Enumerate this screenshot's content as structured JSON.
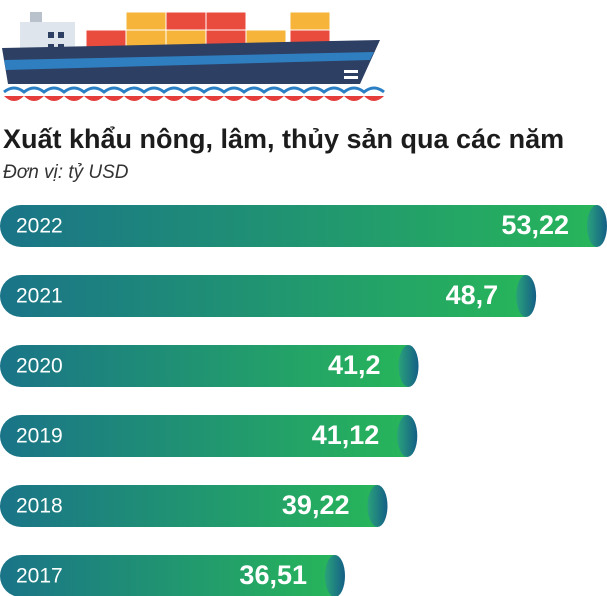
{
  "chart_data": {
    "type": "bar",
    "orientation": "horizontal",
    "title": "Xuất khẩu nông, lâm, thủy sản qua các năm",
    "subtitle": "Đơn vị: tỷ USD",
    "categories": [
      "2022",
      "2021",
      "2020",
      "2019",
      "2018",
      "2017"
    ],
    "values": [
      53.22,
      48.7,
      41.2,
      41.12,
      39.22,
      36.51
    ],
    "value_labels": [
      "53,22",
      "48,7",
      "41,2",
      "41,12",
      "39,22",
      "36,51"
    ]
  }
}
